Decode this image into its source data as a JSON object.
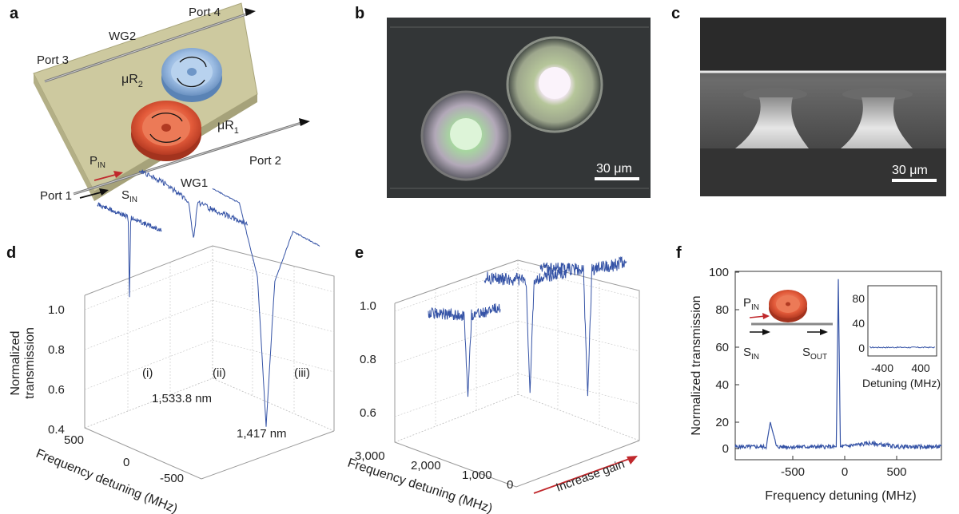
{
  "panels": {
    "a": {
      "letter": "a",
      "labels": {
        "port4": "Port 4",
        "port3": "Port 3",
        "port2": "Port 2",
        "port1": "Port 1",
        "wg2": "WG2",
        "wg1": "WG1",
        "ur2_base": "μR",
        "ur2_sub": "2",
        "ur1_base": "μR",
        "ur1_sub": "1",
        "pin_base": "P",
        "pin_sub": "IN",
        "sin_base": "S",
        "sin_sub": "IN"
      },
      "colors": {
        "chip": "#c9c59a",
        "resonator_blue": "#8fb3dc",
        "resonator_red": "#e0583a",
        "arrow_red": "#c0282c"
      }
    },
    "b": {
      "letter": "b",
      "scalebar": "30 μm"
    },
    "c": {
      "letter": "c",
      "scalebar": "30 μm"
    },
    "d": {
      "letter": "d",
      "ylabel_line1": "Normalized",
      "ylabel_line2": "transmission",
      "xlabel": "Frequency detuning (MHz)",
      "yticks": [
        "1.0",
        "0.8",
        "0.6",
        "0.4"
      ],
      "xticks": [
        "500",
        "0",
        "-500"
      ],
      "annotations": {
        "i": "(i)",
        "ii": "(ii)",
        "iii": "(iii)",
        "wl1": "1,533.8 nm",
        "wl2": "1,417 nm"
      }
    },
    "e": {
      "letter": "e",
      "xlabel": "Frequency detuning (MHz)",
      "yticks": [
        "1.0",
        "0.8",
        "0.6"
      ],
      "xticks": [
        "3,000",
        "2,000",
        "1,000",
        "0"
      ],
      "gain_label": "Increase gain"
    },
    "f": {
      "letter": "f",
      "ylabel": "Normalized transmission",
      "xlabel": "Frequency detuning (MHz)",
      "yticks": [
        "100",
        "80",
        "60",
        "40",
        "20",
        "0"
      ],
      "xticks": [
        "-500",
        "0",
        "500"
      ],
      "inset": {
        "yticks": [
          "80",
          "40",
          "0"
        ],
        "xticks": [
          "-400",
          "400"
        ],
        "xlabel": "Detuning (MHz)",
        "pin_base": "P",
        "pin_sub": "IN",
        "sin_base": "S",
        "sin_sub": "IN",
        "sout_base": "S",
        "sout_sub": "OUT"
      }
    }
  },
  "chart_data": [
    {
      "type": "line",
      "panel": "d",
      "series": [
        {
          "name": "(i)",
          "x": [
            -500,
            -250,
            -20,
            0,
            20,
            250,
            500
          ],
          "y": [
            0.96,
            0.95,
            0.94,
            0.74,
            0.94,
            0.93,
            0.92
          ]
        },
        {
          "name": "(ii)",
          "x": [
            -500,
            -250,
            -40,
            0,
            40,
            250,
            500
          ],
          "y": [
            1.05,
            1.02,
            0.98,
            0.88,
            0.98,
            0.96,
            0.94
          ]
        },
        {
          "name": "(iii)",
          "x": [
            -500,
            -250,
            -80,
            0,
            80,
            250,
            500
          ],
          "y": [
            1.06,
            1.04,
            0.85,
            0.45,
            0.85,
            1.0,
            0.98
          ]
        }
      ],
      "ylim": [
        0.4,
        1.1
      ],
      "xlim": [
        -500,
        500
      ]
    },
    {
      "type": "line",
      "panel": "e",
      "series": [
        {
          "x": [
            0,
            500,
            1500,
            1650,
            1800,
            2500,
            3000
          ],
          "y": [
            0.95,
            0.94,
            0.93,
            0.62,
            0.93,
            0.94,
            0.95
          ]
        },
        {
          "x": [
            0,
            500,
            1500,
            1650,
            1800,
            2500,
            3000
          ],
          "y": [
            1.0,
            0.99,
            0.98,
            0.55,
            0.98,
            0.99,
            1.0
          ]
        },
        {
          "x": [
            0,
            500,
            1500,
            1650,
            1800,
            2500,
            3000
          ],
          "y": [
            1.02,
            1.01,
            1.0,
            0.52,
            1.0,
            1.01,
            1.02
          ]
        }
      ],
      "ylim": [
        0.5,
        1.1
      ],
      "xlim": [
        0,
        3000
      ]
    },
    {
      "type": "line",
      "panel": "f",
      "series": [
        {
          "x": [
            -1000,
            -700,
            -660,
            -600,
            -300,
            -20,
            0,
            20,
            300,
            600,
            1000
          ],
          "y": [
            1,
            1,
            15,
            1,
            1,
            1,
            96,
            1,
            3,
            1,
            1
          ]
        }
      ],
      "ylim": [
        0,
        100
      ],
      "xlim": [
        -1000,
        1000
      ],
      "inset": {
        "x": [
          -800,
          -400,
          0,
          400,
          800
        ],
        "y": [
          1,
          1,
          1,
          1,
          1
        ],
        "ylim": [
          0,
          100
        ]
      }
    }
  ]
}
